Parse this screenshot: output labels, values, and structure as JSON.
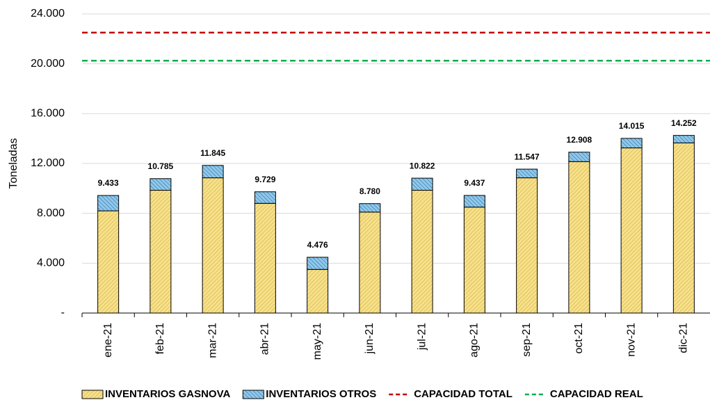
{
  "chart_data": {
    "type": "stacked-bar",
    "y_label": "Toneladas",
    "categories": [
      "ene-21",
      "feb-21",
      "mar-21",
      "abr-21",
      "may-21",
      "jun-21",
      "jul-21",
      "ago-21",
      "sep-21",
      "oct-21",
      "nov-21",
      "dic-21"
    ],
    "series": [
      {
        "name": "INVENTARIOS GASNOVA",
        "color": "#f7e08a",
        "values": [
          8200,
          9850,
          10850,
          8800,
          3500,
          8100,
          9850,
          8500,
          10850,
          12150,
          13250,
          13650
        ]
      },
      {
        "name": "INVENTARIOS OTROS",
        "color": "#8fc8ea",
        "values": [
          1233,
          935,
          995,
          929,
          976,
          680,
          972,
          937,
          697,
          758,
          765,
          602
        ]
      }
    ],
    "totals": [
      {
        "value": 9433,
        "label": "9.433"
      },
      {
        "value": 10785,
        "label": "10.785"
      },
      {
        "value": 11845,
        "label": "11.845"
      },
      {
        "value": 9729,
        "label": "9.729"
      },
      {
        "value": 4476,
        "label": "4.476"
      },
      {
        "value": 8780,
        "label": "8.780"
      },
      {
        "value": 10822,
        "label": "10.822"
      },
      {
        "value": 9437,
        "label": "9.437"
      },
      {
        "value": 11547,
        "label": "11.547"
      },
      {
        "value": 12908,
        "label": "12.908"
      },
      {
        "value": 14015,
        "label": "14.015"
      },
      {
        "value": 14252,
        "label": "14.252"
      }
    ],
    "reference_lines": [
      {
        "name": "CAPACIDAD TOTAL",
        "color": "#c00000",
        "value": 22500
      },
      {
        "name": "CAPACIDAD REAL",
        "color": "#00b050",
        "value": 20250
      }
    ],
    "ylim": [
      0,
      24000
    ],
    "yticks": [
      {
        "value": 0,
        "label": "-"
      },
      {
        "value": 4000,
        "label": "4.000"
      },
      {
        "value": 8000,
        "label": "8.000"
      },
      {
        "value": 12000,
        "label": "12.000"
      },
      {
        "value": 16000,
        "label": "16.000"
      },
      {
        "value": 20000,
        "label": "20.000"
      },
      {
        "value": 24000,
        "label": "24.000"
      }
    ],
    "grid": true
  }
}
